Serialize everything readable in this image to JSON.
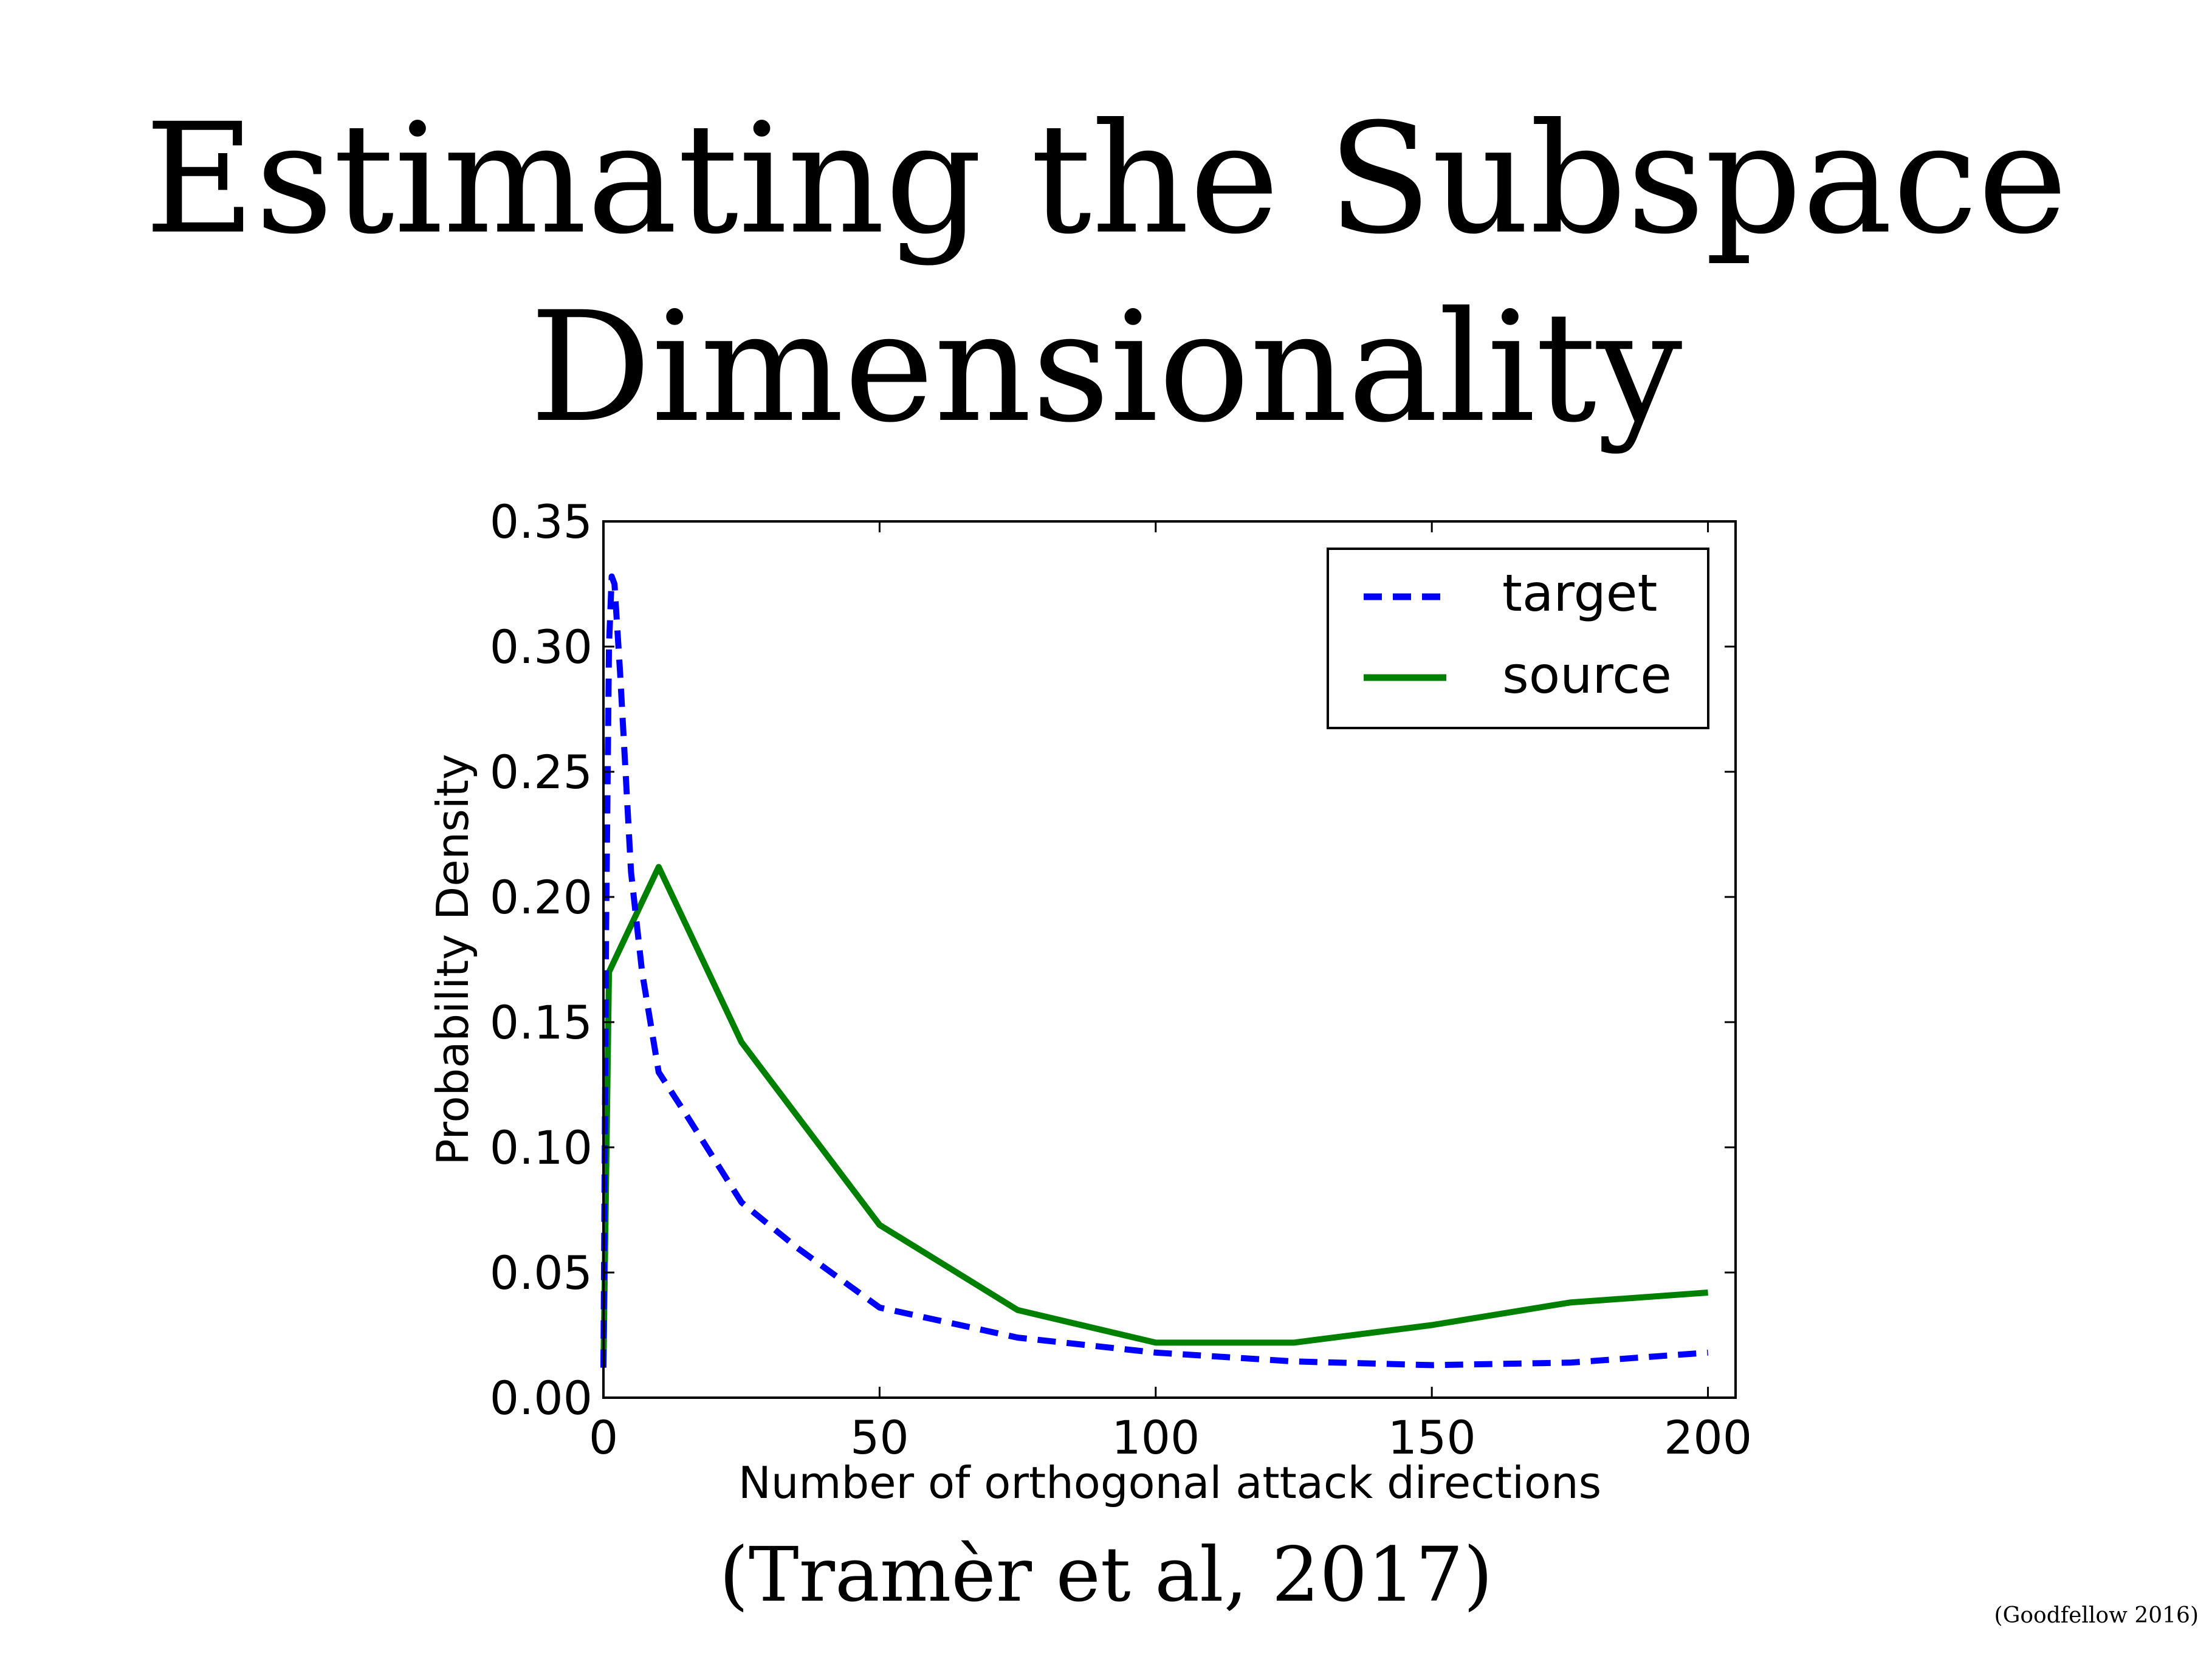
{
  "slide": {
    "title_line1": "Estimating the Subspace",
    "title_line2": "Dimensionality",
    "citation": "(Tramèr et al, 2017)",
    "credit": "(Goodfellow 2016)"
  },
  "chart_data": {
    "type": "line",
    "title": "",
    "xlabel": "Number of orthogonal attack directions",
    "ylabel": "Probability Density",
    "xlim": [
      0,
      205
    ],
    "ylim": [
      0,
      0.35
    ],
    "xticks": [
      "0",
      "50",
      "100",
      "150",
      "200"
    ],
    "xtick_values": [
      0,
      50,
      100,
      150,
      200
    ],
    "yticks": [
      "0.00",
      "0.05",
      "0.10",
      "0.15",
      "0.20",
      "0.25",
      "0.30",
      "0.35"
    ],
    "ytick_values": [
      0,
      0.05,
      0.1,
      0.15,
      0.2,
      0.25,
      0.3,
      0.35
    ],
    "grid": false,
    "legend_position": "top-right",
    "series": [
      {
        "name": "target",
        "color": "#0000ff",
        "style": "dashed",
        "x": [
          0,
          0.5,
          1,
          1.5,
          2,
          3,
          4,
          5,
          7,
          10,
          15,
          25,
          35,
          50,
          75,
          100,
          125,
          150,
          175,
          200
        ],
        "y": [
          0.012,
          0.19,
          0.3,
          0.328,
          0.325,
          0.29,
          0.25,
          0.21,
          0.17,
          0.13,
          0.113,
          0.078,
          0.06,
          0.036,
          0.024,
          0.018,
          0.0145,
          0.013,
          0.014,
          0.018
        ]
      },
      {
        "name": "source",
        "color": "#008000",
        "style": "solid",
        "x": [
          0,
          1,
          10,
          25,
          50,
          75,
          100,
          125,
          150,
          175,
          200
        ],
        "y": [
          0.012,
          0.17,
          0.212,
          0.142,
          0.069,
          0.035,
          0.022,
          0.022,
          0.029,
          0.038,
          0.042
        ]
      }
    ]
  }
}
